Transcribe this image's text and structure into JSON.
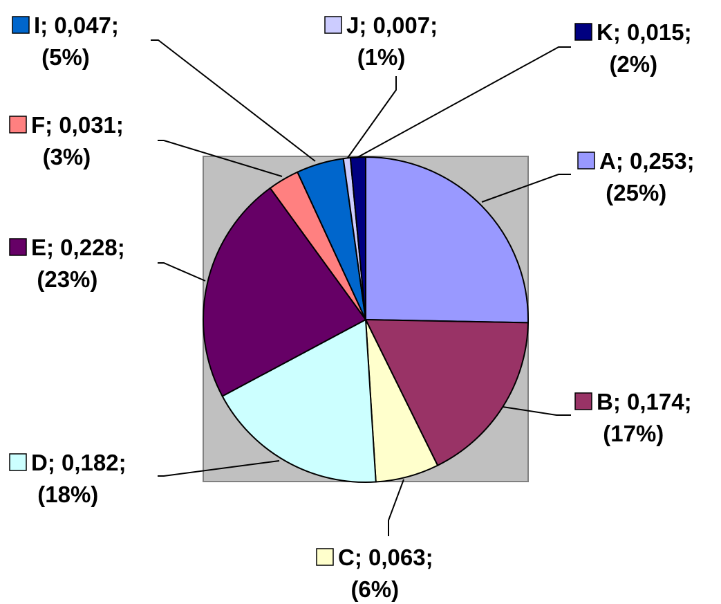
{
  "chart_data": {
    "type": "pie",
    "title": "",
    "start_angle_deg": 0,
    "direction": "clockwise",
    "background": "#c0c0c0",
    "slices": [
      {
        "label": "A",
        "value": 0.253,
        "percent": "25%",
        "color": "#9999ff",
        "text_line1": "A; 0,253;",
        "text_line2": "(25%)"
      },
      {
        "label": "B",
        "value": 0.174,
        "percent": "17%",
        "color": "#993366",
        "text_line1": "B; 0,174;",
        "text_line2": "(17%)"
      },
      {
        "label": "C",
        "value": 0.063,
        "percent": "6%",
        "color": "#ffffcc",
        "text_line1": "C; 0,063;",
        "text_line2": "(6%)"
      },
      {
        "label": "D",
        "value": 0.182,
        "percent": "18%",
        "color": "#ccffff",
        "text_line1": "D; 0,182;",
        "text_line2": "(18%)"
      },
      {
        "label": "E",
        "value": 0.228,
        "percent": "23%",
        "color": "#660066",
        "text_line1": "E; 0,228;",
        "text_line2": "(23%)"
      },
      {
        "label": "F",
        "value": 0.031,
        "percent": "3%",
        "color": "#ff8080",
        "text_line1": "F; 0,031;",
        "text_line2": "(3%)"
      },
      {
        "label": "I",
        "value": 0.047,
        "percent": "5%",
        "color": "#0066cc",
        "text_line1": "I; 0,047;",
        "text_line2": "(5%)"
      },
      {
        "label": "J",
        "value": 0.007,
        "percent": "1%",
        "color": "#ccccff",
        "text_line1": "J; 0,007;",
        "text_line2": "(1%)"
      },
      {
        "label": "K",
        "value": 0.015,
        "percent": "2%",
        "color": "#000080",
        "text_line1": "K; 0,015;",
        "text_line2": "(2%)"
      }
    ]
  }
}
